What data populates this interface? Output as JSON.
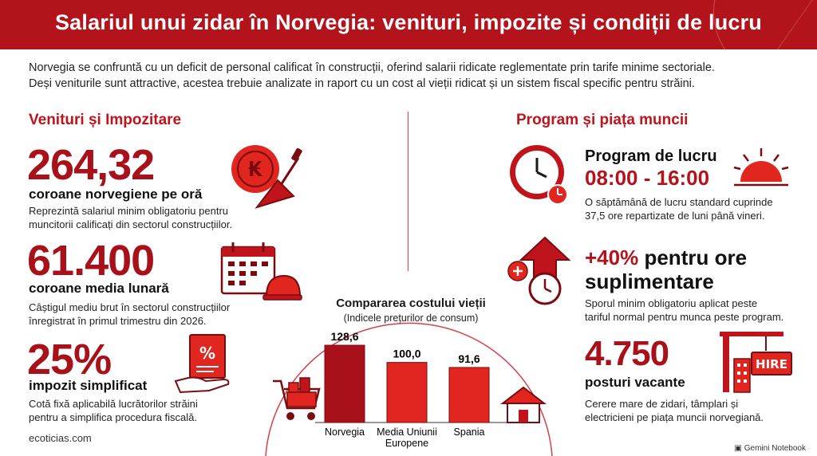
{
  "header": {
    "title": "Salariul unui zidar în Norvegia: venituri, impozite și condiții de lucru"
  },
  "intro": {
    "line1": "Norvegia se confruntă cu un deficit de personal calificat în construcții, oferind salarii ridicate reglementate prin tarife minime sectoriale.",
    "line2": "Deși veniturile sunt attractive, acestea trebuie analizate in raport cu un cost al vieții ridicat și un sistem fiscal specific pentru străini."
  },
  "left": {
    "title": "Venituri și Impozitare",
    "items": [
      {
        "value": "264,32",
        "label": "coroane norvegiene pe oră",
        "desc1": "Reprezintă salariul minim obligatoriu pentru",
        "desc2": "muncitorii calificați din sectorul construcțiilor."
      },
      {
        "value": "61.400",
        "label": "coroane media lunară",
        "desc1": "Câștigul mediu brut în sectorul construcțiilor",
        "desc2": "înregistrat în primul trimestru din 2026."
      },
      {
        "value": "25%",
        "label": "impozit simplificat",
        "desc1": "Cotă fixă aplicabilă lucrătorilor străini",
        "desc2": "pentru a simplifica procedura fiscală."
      }
    ]
  },
  "right": {
    "title": "Program și piața muncii",
    "schedule": {
      "heading": "Program de lucru",
      "hours": "08:00 - 16:00",
      "desc1": "O săptămână de lucru standard cuprinde",
      "desc2": "37,5 ore repartizate de luni până vineri."
    },
    "overtime": {
      "value": "+40%",
      "label_rest": "pentru ore",
      "label2": "suplimentare",
      "desc1": "Sporul minim obligatoriu aplicat peste",
      "desc2": "tariful normal pentru munca peste program."
    },
    "vacancies": {
      "value": "4.750",
      "label": "posturi vacante",
      "desc1": "Cerere mare de zidari, tâmplari și",
      "desc2": "electricieni pe piața muncii norvegiană.",
      "sign": "HIRE"
    }
  },
  "icons": {
    "coin_symbol": "₭",
    "percent_symbol": "%"
  },
  "chart_data": {
    "type": "bar",
    "title": "Compararea costului vieții",
    "subtitle": "(Indicele prețurilor de consum)",
    "categories": [
      "Norvegia",
      "Media Uniunii Europene",
      "Spania"
    ],
    "values": [
      128.6,
      100.0,
      91.6
    ],
    "value_labels": [
      "128,6",
      "100,0",
      "91,6"
    ],
    "colors": [
      "#a8101a",
      "#e0261f",
      "#e0261f"
    ]
  },
  "footer": {
    "source": "ecoticias.com",
    "brand": "Gemini Notebook"
  }
}
